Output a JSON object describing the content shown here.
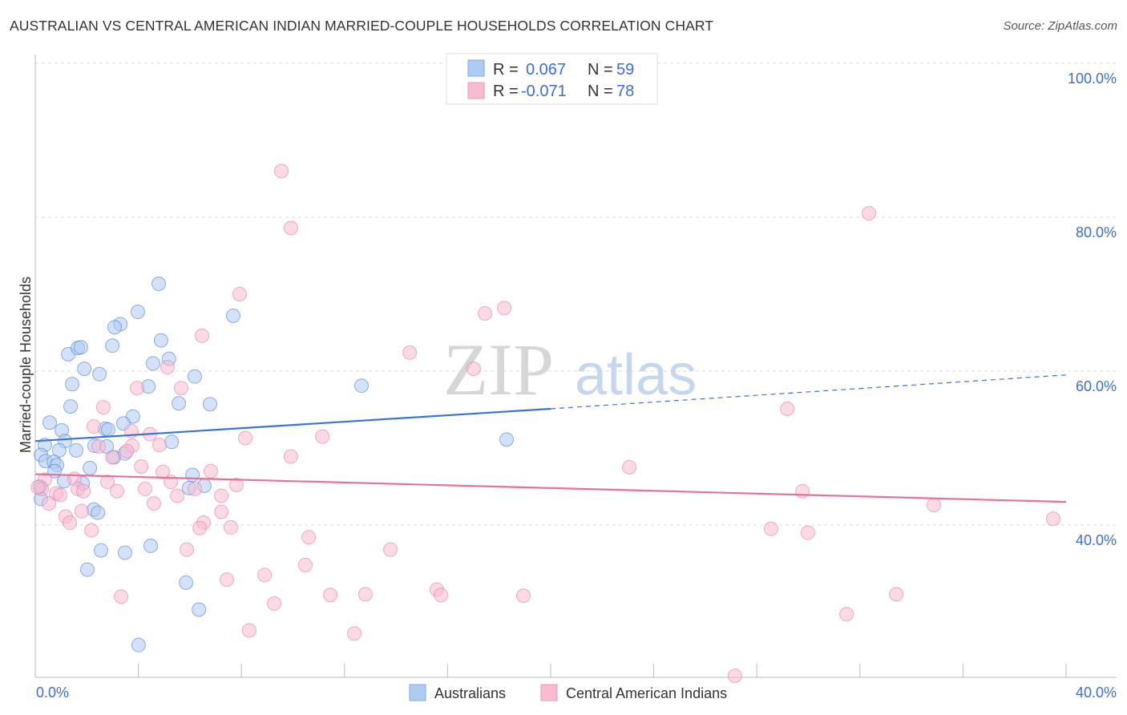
{
  "title": "AUSTRALIAN VS CENTRAL AMERICAN INDIAN MARRIED-COUPLE HOUSEHOLDS CORRELATION CHART",
  "source": "Source: ZipAtlas.com",
  "watermark": "ZIPatlas",
  "colors": {
    "blue": "#3a74d6",
    "blue_fill": "#aecbf2",
    "pink": "#e8709a",
    "pink_fill": "#f7bccf",
    "label": "#3b6fd1"
  },
  "chart_data": {
    "type": "scatter",
    "title": "AUSTRALIAN VS CENTRAL AMERICAN INDIAN MARRIED-COUPLE HOUSEHOLDS CORRELATION CHART",
    "xlabel": "",
    "ylabel": "Married-couple Households",
    "xlim": [
      0,
      41.96
    ],
    "ylim": [
      20.2,
      100
    ],
    "x_ticks": [
      "0.0%",
      "40.0%"
    ],
    "y_ticks": [
      {
        "v": 100,
        "label": "100.0%"
      },
      {
        "v": 80,
        "label": "80.0%"
      },
      {
        "v": 60,
        "label": "60.0%"
      },
      {
        "v": 40,
        "label": "40.0%"
      }
    ],
    "grid": true,
    "legend_stats": [
      {
        "r_label": "R =",
        "r": "0.067",
        "n_label": "N =",
        "n": "59"
      },
      {
        "r_label": "R =",
        "r": "-0.071",
        "n_label": "N =",
        "n": "78"
      }
    ],
    "series": [
      {
        "name": "Australians",
        "color": "blue",
        "trend": {
          "x0": 0,
          "y0": 50.9,
          "x_solid_end": 20,
          "y_solid_end": 55.1,
          "x1": 40,
          "y1": 59.5
        },
        "points": [
          [
            4.79,
            71.35
          ],
          [
            3.98,
            67.7
          ],
          [
            7.68,
            67.2
          ],
          [
            3.3,
            66.1
          ],
          [
            3.08,
            65.7
          ],
          [
            4.88,
            64.0
          ],
          [
            2.99,
            63.3
          ],
          [
            1.28,
            62.2
          ],
          [
            1.65,
            63.0
          ],
          [
            1.77,
            63.1
          ],
          [
            5.19,
            61.6
          ],
          [
            4.57,
            61.0
          ],
          [
            1.9,
            60.3
          ],
          [
            2.49,
            59.6
          ],
          [
            6.19,
            59.3
          ],
          [
            1.43,
            58.3
          ],
          [
            4.39,
            58.0
          ],
          [
            12.66,
            58.1
          ],
          [
            5.57,
            55.8
          ],
          [
            6.78,
            55.7
          ],
          [
            1.37,
            55.4
          ],
          [
            3.79,
            54.1
          ],
          [
            3.42,
            53.2
          ],
          [
            0.56,
            53.3
          ],
          [
            2.71,
            52.5
          ],
          [
            1.03,
            52.3
          ],
          [
            2.83,
            52.4
          ],
          [
            5.29,
            50.8
          ],
          [
            18.29,
            51.1
          ],
          [
            0.37,
            50.4
          ],
          [
            1.15,
            50.9
          ],
          [
            2.3,
            50.3
          ],
          [
            2.77,
            50.2
          ],
          [
            0.93,
            49.7
          ],
          [
            1.59,
            49.7
          ],
          [
            0.22,
            49.1
          ],
          [
            0.4,
            48.3
          ],
          [
            0.72,
            48.2
          ],
          [
            0.84,
            47.8
          ],
          [
            3.05,
            48.8
          ],
          [
            3.48,
            49.3
          ],
          [
            2.12,
            47.4
          ],
          [
            0.75,
            47.0
          ],
          [
            1.12,
            45.7
          ],
          [
            1.84,
            45.4
          ],
          [
            6.1,
            46.5
          ],
          [
            6.56,
            45.1
          ],
          [
            5.97,
            44.8
          ],
          [
            2.27,
            42.0
          ],
          [
            2.43,
            41.6
          ],
          [
            0.22,
            43.4
          ],
          [
            2.55,
            36.7
          ],
          [
            3.48,
            36.4
          ],
          [
            4.48,
            37.3
          ],
          [
            2.02,
            34.2
          ],
          [
            5.85,
            32.5
          ],
          [
            6.35,
            29.0
          ],
          [
            4.01,
            24.4
          ],
          [
            0.19,
            45.0
          ]
        ]
      },
      {
        "name": "Central American Indians",
        "color": "pink",
        "trend": {
          "x0": 0,
          "y0": 46.6,
          "x1": 40,
          "y1": 43.0
        },
        "points": [
          [
            9.55,
            86.0
          ],
          [
            9.92,
            78.6
          ],
          [
            32.35,
            80.5
          ],
          [
            7.93,
            70.0
          ],
          [
            18.2,
            68.2
          ],
          [
            17.45,
            67.5
          ],
          [
            6.47,
            64.6
          ],
          [
            14.53,
            62.4
          ],
          [
            5.13,
            60.5
          ],
          [
            17.01,
            60.3
          ],
          [
            3.95,
            57.8
          ],
          [
            5.66,
            57.8
          ],
          [
            2.64,
            55.3
          ],
          [
            29.18,
            55.1
          ],
          [
            2.27,
            52.8
          ],
          [
            3.73,
            52.2
          ],
          [
            4.45,
            51.8
          ],
          [
            8.15,
            51.3
          ],
          [
            11.14,
            51.5
          ],
          [
            2.46,
            50.2
          ],
          [
            3.76,
            50.3
          ],
          [
            4.82,
            50.4
          ],
          [
            3.55,
            49.6
          ],
          [
            2.99,
            48.8
          ],
          [
            9.92,
            48.9
          ],
          [
            4.11,
            47.6
          ],
          [
            4.95,
            46.9
          ],
          [
            6.81,
            47.0
          ],
          [
            23.05,
            47.5
          ],
          [
            1.52,
            46.0
          ],
          [
            2.8,
            45.6
          ],
          [
            5.26,
            45.6
          ],
          [
            7.81,
            45.2
          ],
          [
            0.37,
            45.9
          ],
          [
            0.25,
            44.7
          ],
          [
            1.65,
            44.7
          ],
          [
            1.87,
            44.4
          ],
          [
            3.17,
            44.4
          ],
          [
            4.26,
            44.7
          ],
          [
            6.19,
            44.7
          ],
          [
            29.77,
            44.4
          ],
          [
            0.81,
            44.1
          ],
          [
            0.97,
            43.9
          ],
          [
            5.51,
            43.8
          ],
          [
            7.22,
            43.8
          ],
          [
            0.53,
            42.8
          ],
          [
            4.6,
            42.8
          ],
          [
            34.87,
            42.6
          ],
          [
            1.8,
            41.8
          ],
          [
            7.22,
            41.7
          ],
          [
            1.18,
            41.1
          ],
          [
            1.34,
            40.3
          ],
          [
            6.53,
            40.3
          ],
          [
            39.5,
            40.8
          ],
          [
            2.18,
            39.3
          ],
          [
            6.38,
            39.6
          ],
          [
            7.59,
            39.7
          ],
          [
            28.55,
            39.5
          ],
          [
            29.98,
            39.0
          ],
          [
            10.61,
            38.4
          ],
          [
            5.88,
            36.8
          ],
          [
            13.78,
            36.8
          ],
          [
            10.48,
            34.8
          ],
          [
            8.9,
            33.5
          ],
          [
            7.43,
            32.9
          ],
          [
            3.33,
            30.7
          ],
          [
            11.45,
            30.9
          ],
          [
            12.81,
            31.0
          ],
          [
            15.58,
            31.6
          ],
          [
            15.74,
            30.9
          ],
          [
            18.94,
            30.8
          ],
          [
            33.41,
            31.0
          ],
          [
            9.27,
            29.8
          ],
          [
            31.48,
            28.4
          ],
          [
            8.3,
            26.3
          ],
          [
            12.38,
            25.9
          ],
          [
            27.15,
            20.4
          ],
          [
            0.1,
            44.9
          ]
        ]
      }
    ]
  }
}
